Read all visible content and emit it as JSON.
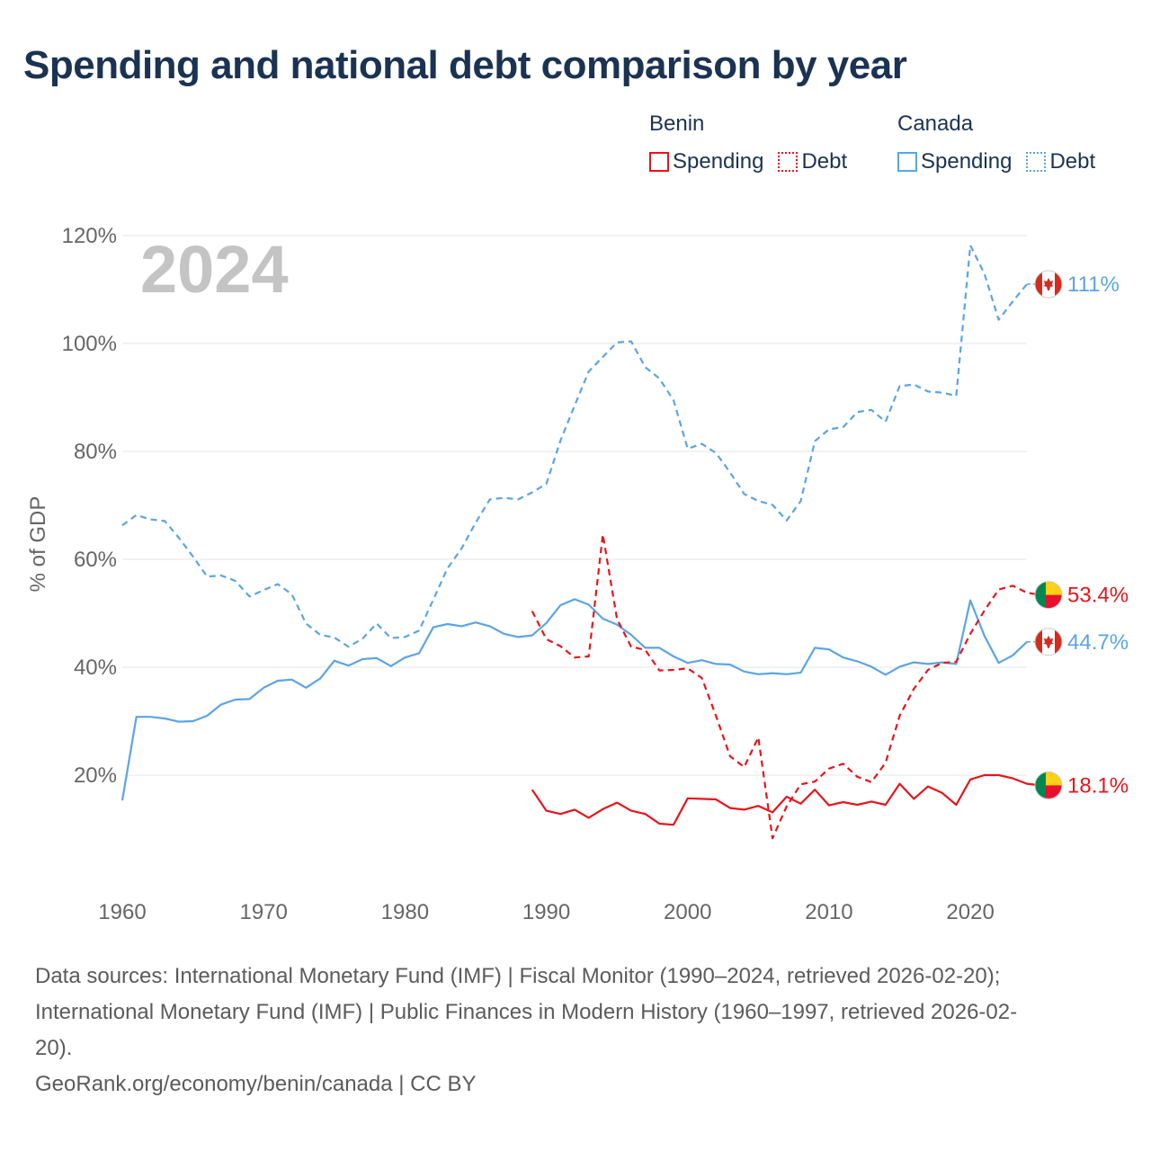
{
  "title": "Spending and national debt comparison by year",
  "year_label": "2024",
  "colors": {
    "benin": "#e8141b",
    "canada": "#5ba4e5",
    "grid": "#e6e6e6",
    "axis_text": "#666666",
    "title": "#1b3352",
    "year": "#c4c4c4"
  },
  "legend": {
    "benin": {
      "name": "Benin",
      "spending": "Spending",
      "debt": "Debt"
    },
    "canada": {
      "name": "Canada",
      "spending": "Spending",
      "debt": "Debt"
    }
  },
  "sources": {
    "line1": "Data sources: International Monetary Fund (IMF) | Fiscal Monitor (1990–2024, retrieved 2026-02-20);",
    "line2": "International Monetary Fund (IMF) | Public Finances in Modern History (1960–1997, retrieved 2026-02-",
    "line3": "20).",
    "credit": "GeoRank.org/economy/benin/canada | CC BY"
  },
  "chart_data": {
    "type": "line",
    "title": "Spending and national debt comparison by year",
    "xlabel": "",
    "ylabel": "% of GDP",
    "xlim": [
      1960,
      2024
    ],
    "ylim": [
      0,
      120
    ],
    "x_ticks": [
      1960,
      1970,
      1980,
      1990,
      2000,
      2010,
      2020
    ],
    "y_ticks": [
      20,
      40,
      60,
      80,
      100,
      120
    ],
    "y_tick_labels": [
      "20%",
      "40%",
      "60%",
      "80%",
      "100%",
      "120%"
    ],
    "series": [
      {
        "name": "Canada Debt",
        "country": "canada",
        "style": "dashed",
        "start": 1960,
        "values": [
          66.3,
          68.2,
          67.4,
          67.1,
          64.0,
          60.5,
          56.8,
          57.0,
          56.0,
          53.1,
          54.3,
          55.4,
          53.5,
          48.1,
          46.0,
          45.5,
          43.8,
          45.3,
          48.1,
          45.4,
          45.6,
          46.8,
          52.5,
          58.3,
          62.0,
          66.8,
          71.1,
          71.4,
          71.1,
          72.4,
          74.0,
          82.0,
          88.5,
          94.8,
          97.5,
          100.2,
          100.4,
          95.6,
          93.5,
          89.5,
          80.5,
          81.4,
          79.7,
          76.1,
          72.1,
          70.8,
          70.1,
          67.2,
          70.8,
          81.9,
          84.1,
          84.5,
          87.3,
          87.7,
          85.5,
          92.1,
          92.4,
          91.1,
          90.9,
          90.3,
          118.2,
          112.9,
          104.4,
          107.8,
          111.0
        ]
      },
      {
        "name": "Canada Spending",
        "country": "canada",
        "style": "solid",
        "start": 1960,
        "values": [
          15.3,
          30.8,
          30.8,
          30.5,
          29.9,
          30.0,
          31.0,
          33.1,
          34.0,
          34.1,
          36.2,
          37.5,
          37.7,
          36.2,
          37.9,
          41.2,
          40.3,
          41.5,
          41.7,
          40.2,
          41.8,
          42.6,
          47.4,
          48.0,
          47.6,
          48.3,
          47.6,
          46.2,
          45.6,
          45.9,
          48.2,
          51.5,
          52.6,
          51.6,
          49.0,
          47.9,
          46.0,
          43.6,
          43.6,
          42.0,
          40.8,
          41.3,
          40.6,
          40.5,
          39.2,
          38.7,
          38.9,
          38.7,
          39.0,
          43.6,
          43.3,
          41.8,
          41.1,
          40.1,
          38.6,
          40.1,
          40.9,
          40.6,
          40.9,
          40.6,
          52.4,
          45.8,
          40.8,
          42.2,
          44.7
        ]
      },
      {
        "name": "Benin Debt",
        "country": "benin",
        "style": "dashed",
        "start": 1989,
        "values": [
          50.4,
          45.2,
          43.9,
          41.8,
          42.0,
          64.6,
          48.9,
          43.8,
          43.2,
          39.4,
          39.5,
          39.8,
          38.0,
          31.0,
          23.5,
          21.5,
          27.0,
          8.3,
          14.2,
          18.3,
          18.8,
          21.2,
          22.1,
          19.7,
          18.7,
          22.3,
          31.0,
          36.0,
          39.5,
          40.8,
          41.0,
          46.2,
          50.5,
          54.4,
          55.1,
          53.8,
          53.4
        ]
      },
      {
        "name": "Benin Spending",
        "country": "benin",
        "style": "solid",
        "start": 1989,
        "values": [
          17.3,
          13.4,
          12.8,
          13.6,
          12.1,
          13.7,
          14.9,
          13.4,
          12.8,
          11.0,
          10.8,
          15.7,
          15.6,
          15.5,
          13.9,
          13.6,
          14.3,
          13.1,
          16.0,
          14.7,
          17.3,
          14.4,
          15.0,
          14.5,
          15.1,
          14.5,
          18.4,
          15.6,
          17.9,
          16.7,
          14.5,
          19.2,
          20.0,
          20.0,
          19.4,
          18.4,
          18.1
        ]
      }
    ],
    "end_labels": [
      {
        "country": "canada",
        "series": "Canada Debt",
        "value": 111.0,
        "text": "111%"
      },
      {
        "country": "benin",
        "series": "Benin Debt",
        "value": 53.4,
        "text": "53.4%"
      },
      {
        "country": "canada",
        "series": "Canada Spending",
        "value": 44.7,
        "text": "44.7%"
      },
      {
        "country": "benin",
        "series": "Benin Spending",
        "value": 18.1,
        "text": "18.1%"
      }
    ]
  }
}
